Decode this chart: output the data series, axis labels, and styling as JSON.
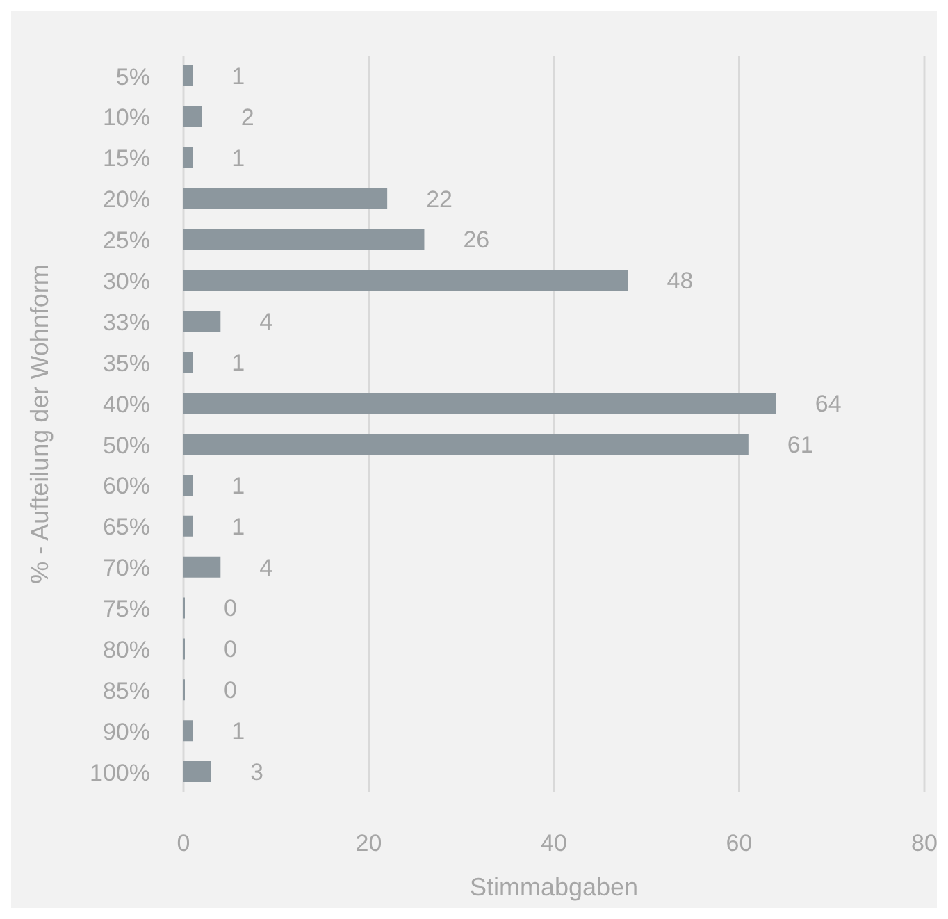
{
  "chart_data": {
    "type": "bar",
    "orientation": "horizontal",
    "categories": [
      "5%",
      "10%",
      "15%",
      "20%",
      "25%",
      "30%",
      "33%",
      "35%",
      "40%",
      "50%",
      "60%",
      "65%",
      "70%",
      "75%",
      "80%",
      "85%",
      "90%",
      "100%"
    ],
    "values": [
      1,
      2,
      1,
      22,
      26,
      48,
      4,
      1,
      64,
      61,
      1,
      1,
      4,
      0,
      0,
      0,
      1,
      3
    ],
    "color": "#8c979e",
    "xlim": [
      0,
      80
    ],
    "xticks": [
      0,
      20,
      40,
      60,
      80
    ],
    "xlabel": "Stimmabgaben",
    "ylabel": "% - Aufteilung der Wohnform",
    "grid": "x",
    "data_labels": true
  }
}
